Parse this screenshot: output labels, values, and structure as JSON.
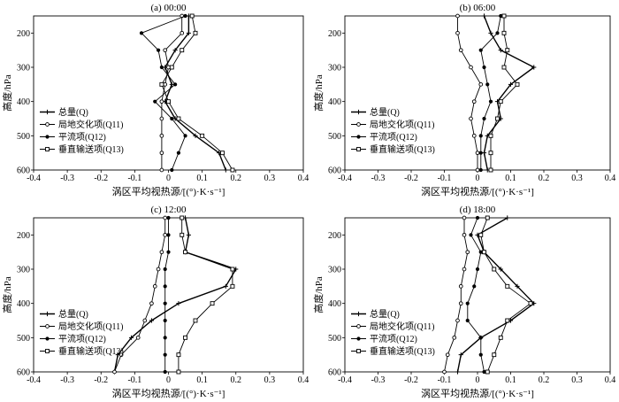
{
  "chart_data": [
    {
      "type": "line",
      "title": "(a) 00:00",
      "xlabel": "涡区平均视热源/[(°)·K·s⁻¹]",
      "ylabel": "高度/hPa",
      "xlim": [
        -0.4,
        0.4
      ],
      "ylim": [
        150,
        600
      ],
      "y_inverted": true,
      "xtick_labels": [
        "-0.4",
        "-0.3",
        "-0.2",
        "-0.1",
        "0",
        "0.1",
        "0.2",
        "0.3",
        "0.4"
      ],
      "ytick_labels": [
        "200",
        "300",
        "400",
        "500",
        "600"
      ],
      "grid": false,
      "legend_position": "lower-left",
      "y": [
        150,
        200,
        250,
        300,
        350,
        400,
        450,
        500,
        550,
        600
      ],
      "series": [
        {
          "name": "总量(Q)",
          "marker": "plus",
          "x": [
            0.06,
            0.06,
            0.02,
            -0.01,
            0.01,
            -0.01,
            0.02,
            0.08,
            0.15,
            0.17
          ]
        },
        {
          "name": "局地交化项(Q11)",
          "marker": "open-circle",
          "x": [
            0.04,
            0.04,
            -0.01,
            0.0,
            -0.01,
            -0.02,
            -0.02,
            -0.02,
            -0.02,
            -0.02
          ]
        },
        {
          "name": "平流项(Q12)",
          "marker": "filled-circle",
          "x": [
            0.05,
            -0.08,
            -0.03,
            -0.02,
            0.02,
            -0.04,
            0.01,
            0.05,
            0.03,
            0.01
          ]
        },
        {
          "name": "垂直输送项(Q13)",
          "marker": "open-square",
          "x": [
            0.07,
            0.08,
            0.04,
            0.01,
            -0.02,
            0.0,
            0.03,
            0.1,
            0.16,
            0.19
          ]
        }
      ]
    },
    {
      "type": "line",
      "title": "(b) 06:00",
      "xlabel": "涡区平均视热源/[(°)·K·s⁻¹]",
      "ylabel": "高度/hPa",
      "xlim": [
        -0.4,
        0.4
      ],
      "ylim": [
        150,
        600
      ],
      "y_inverted": true,
      "xtick_labels": [
        "-0.4",
        "-0.3",
        "-0.2",
        "-0.1",
        "0",
        "0.1",
        "0.2",
        "0.3",
        "0.4"
      ],
      "ytick_labels": [
        "200",
        "300",
        "400",
        "500",
        "600"
      ],
      "grid": false,
      "legend_position": "lower-left",
      "y": [
        150,
        200,
        250,
        300,
        350,
        400,
        450,
        500,
        550,
        600
      ],
      "series": [
        {
          "name": "总量(Q)",
          "marker": "plus",
          "x": [
            0.02,
            0.04,
            0.07,
            0.17,
            0.1,
            0.06,
            0.07,
            0.03,
            0.02,
            0.03
          ]
        },
        {
          "name": "局地交化项(Q11)",
          "marker": "open-circle",
          "x": [
            -0.06,
            -0.06,
            -0.05,
            -0.02,
            0.01,
            -0.01,
            -0.02,
            -0.01,
            0.0,
            0.0
          ]
        },
        {
          "name": "平流项(Q12)",
          "marker": "filled-circle",
          "x": [
            0.07,
            0.06,
            0.01,
            0.02,
            0.03,
            0.04,
            0.02,
            0.01,
            0.01,
            0.01
          ]
        },
        {
          "name": "垂直输送项(Q13)",
          "marker": "open-square",
          "x": [
            0.08,
            0.08,
            0.09,
            0.08,
            0.12,
            0.07,
            0.06,
            0.04,
            0.04,
            0.04
          ]
        }
      ]
    },
    {
      "type": "line",
      "title": "(c) 12:00",
      "xlabel": "涡区平均视热源/[(°)·K·s⁻¹]",
      "ylabel": "高度/hPa",
      "xlim": [
        -0.4,
        0.4
      ],
      "ylim": [
        150,
        600
      ],
      "y_inverted": true,
      "xtick_labels": [
        "-0.4",
        "-0.3",
        "-0.2",
        "-0.1",
        "0",
        "0.1",
        "0.2",
        "0.3",
        "0.4"
      ],
      "ytick_labels": [
        "200",
        "300",
        "400",
        "500",
        "600"
      ],
      "grid": false,
      "legend_position": "lower-left",
      "y": [
        150,
        200,
        250,
        300,
        350,
        400,
        450,
        500,
        550,
        600
      ],
      "series": [
        {
          "name": "总量(Q)",
          "marker": "plus",
          "x": [
            0.05,
            0.06,
            0.05,
            0.2,
            0.17,
            0.03,
            -0.05,
            -0.11,
            -0.15,
            -0.16
          ]
        },
        {
          "name": "局地交化项(Q11)",
          "marker": "open-circle",
          "x": [
            -0.01,
            -0.01,
            -0.02,
            -0.03,
            -0.04,
            -0.05,
            -0.07,
            -0.09,
            -0.14,
            -0.16
          ]
        },
        {
          "name": "平流项(Q12)",
          "marker": "filled-circle",
          "x": [
            0.0,
            0.0,
            0.0,
            -0.01,
            -0.01,
            -0.01,
            -0.01,
            -0.01,
            -0.01,
            -0.01
          ]
        },
        {
          "name": "垂直输送项(Q13)",
          "marker": "open-square",
          "x": [
            0.04,
            0.04,
            0.05,
            0.19,
            0.19,
            0.13,
            0.08,
            0.05,
            0.03,
            0.03
          ]
        }
      ]
    },
    {
      "type": "line",
      "title": "(d) 18:00",
      "xlabel": "涡区平均视热源/[(°)·K·s⁻¹]",
      "ylabel": "高度/hPa",
      "xlim": [
        -0.4,
        0.4
      ],
      "ylim": [
        150,
        600
      ],
      "y_inverted": true,
      "xtick_labels": [
        "-0.4",
        "-0.3",
        "-0.2",
        "-0.1",
        "0",
        "0.1",
        "0.2",
        "0.3",
        "0.4"
      ],
      "ytick_labels": [
        "200",
        "300",
        "400",
        "500",
        "600"
      ],
      "grid": false,
      "legend_position": "lower-left",
      "y": [
        150,
        200,
        250,
        300,
        350,
        400,
        450,
        500,
        550,
        600
      ],
      "series": [
        {
          "name": "总量(Q)",
          "marker": "plus",
          "x": [
            0.09,
            0.0,
            0.02,
            0.07,
            0.12,
            0.17,
            0.1,
            0.01,
            -0.05,
            -0.06
          ]
        },
        {
          "name": "局地交化项(Q11)",
          "marker": "open-circle",
          "x": [
            -0.04,
            -0.04,
            -0.03,
            -0.04,
            -0.05,
            -0.05,
            -0.06,
            -0.07,
            -0.09,
            -0.1
          ]
        },
        {
          "name": "平流项(Q12)",
          "marker": "filled-circle",
          "x": [
            0.0,
            -0.02,
            0.01,
            0.0,
            -0.01,
            -0.03,
            -0.03,
            0.01,
            0.01,
            0.02
          ]
        },
        {
          "name": "垂直输送项(Q13)",
          "marker": "open-square",
          "x": [
            0.03,
            0.01,
            0.02,
            0.05,
            0.09,
            0.16,
            0.09,
            0.07,
            0.05,
            0.03
          ]
        }
      ]
    }
  ]
}
